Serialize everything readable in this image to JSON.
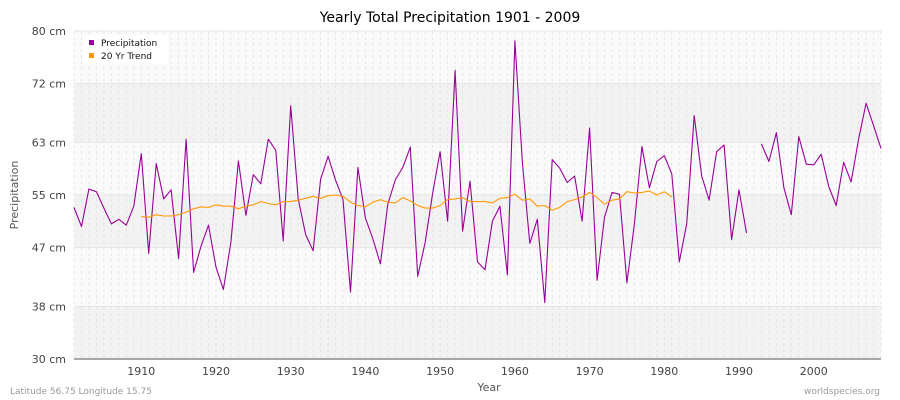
{
  "chart_data": {
    "type": "line",
    "title": "Yearly Total Precipitation 1901 - 2009",
    "xlabel": "Year",
    "ylabel": "Precipitation",
    "xlim": [
      1901,
      2009
    ],
    "ylim": [
      30,
      80
    ],
    "y_ticks": [
      "30 cm",
      "38 cm",
      "47 cm",
      "55 cm",
      "63 cm",
      "72 cm",
      "80 cm"
    ],
    "x_ticks": [
      "1910",
      "1920",
      "1930",
      "1940",
      "1950",
      "1960",
      "1970",
      "1980",
      "1990",
      "2000"
    ],
    "legend_position": "top-left",
    "grid": true,
    "series": [
      {
        "name": "Precipitation",
        "color": "#990099",
        "x": [
          1901,
          1902,
          1903,
          1904,
          1905,
          1906,
          1907,
          1908,
          1909,
          1910,
          1911,
          1912,
          1913,
          1914,
          1915,
          1916,
          1917,
          1918,
          1919,
          1920,
          1921,
          1922,
          1923,
          1924,
          1925,
          1926,
          1927,
          1928,
          1929,
          1930,
          1931,
          1932,
          1933,
          1934,
          1935,
          1936,
          1937,
          1938,
          1939,
          1940,
          1941,
          1942,
          1943,
          1944,
          1945,
          1946,
          1947,
          1948,
          1949,
          1950,
          1951,
          1952,
          1953,
          1954,
          1955,
          1956,
          1957,
          1958,
          1959,
          1960,
          1961,
          1962,
          1963,
          1964,
          1965,
          1966,
          1967,
          1968,
          1969,
          1970,
          1971,
          1972,
          1973,
          1974,
          1975,
          1976,
          1977,
          1978,
          1979,
          1980,
          1981,
          1982,
          1983,
          1984,
          1985,
          1986,
          1987,
          1988,
          1989,
          1990,
          1991,
          1992,
          1993,
          1994,
          1995,
          1996,
          1997,
          1998,
          1999,
          2000,
          2001,
          2002,
          2003,
          2004,
          2005,
          2006,
          2007,
          2008,
          2009
        ],
        "values": [
          53.1,
          50.2,
          55.9,
          55.5,
          53.0,
          50.6,
          51.3,
          50.4,
          53.3,
          61.3,
          46.1,
          59.8,
          54.4,
          55.8,
          45.3,
          63.5,
          43.2,
          47.2,
          50.4,
          44.0,
          40.6,
          47.8,
          60.2,
          51.9,
          58.1,
          56.7,
          63.5,
          61.8,
          48.0,
          68.6,
          54.4,
          49.0,
          46.5,
          57.4,
          60.9,
          57.3,
          54.3,
          40.2,
          59.2,
          51.5,
          48.3,
          44.5,
          53.6,
          57.3,
          59.2,
          62.3,
          42.6,
          47.8,
          55.3,
          61.6,
          51.0,
          74.0,
          49.5,
          57.1,
          44.8,
          43.6,
          51.0,
          53.3,
          42.8,
          78.5,
          60.1,
          47.6,
          51.3,
          38.6,
          60.4,
          59.1,
          56.9,
          57.9,
          51.0,
          65.2,
          42.0,
          51.6,
          55.4,
          55.1,
          41.6,
          50.6,
          62.4,
          56.1,
          60.1,
          61.0,
          58.2,
          44.8,
          50.6,
          67.1,
          57.9,
          54.2,
          61.6,
          62.6,
          48.2,
          55.8,
          49.2,
          null,
          62.8,
          60.1,
          64.5,
          56.1,
          52.0,
          63.9,
          59.7,
          59.6,
          61.2,
          56.3,
          53.4,
          60.0,
          57.0,
          63.5,
          69.0,
          65.6,
          62.1
        ]
      },
      {
        "name": "20 Yr Trend",
        "color": "#ff9900",
        "x": [
          1910,
          1911,
          1912,
          1913,
          1914,
          1915,
          1916,
          1917,
          1918,
          1919,
          1920,
          1921,
          1922,
          1923,
          1924,
          1925,
          1926,
          1927,
          1928,
          1929,
          1930,
          1931,
          1932,
          1933,
          1934,
          1935,
          1936,
          1937,
          1938,
          1939,
          1940,
          1941,
          1942,
          1943,
          1944,
          1945,
          1946,
          1947,
          1948,
          1949,
          1950,
          1951,
          1952,
          1953,
          1954,
          1955,
          1956,
          1957,
          1958,
          1959,
          1960,
          1961,
          1962,
          1963,
          1964,
          1965,
          1966,
          1967,
          1968,
          1969,
          1970,
          1971,
          1972,
          1973,
          1974,
          1975,
          1976,
          1977,
          1978,
          1979,
          1980,
          1981
        ],
        "values": [
          51.7,
          51.6,
          52.0,
          51.8,
          51.8,
          52.0,
          52.4,
          52.9,
          53.2,
          53.1,
          53.5,
          53.3,
          53.3,
          52.9,
          53.3,
          53.5,
          54.0,
          53.7,
          53.5,
          54.0,
          54.0,
          54.2,
          54.5,
          54.8,
          54.5,
          54.9,
          55.0,
          54.8,
          53.9,
          53.4,
          53.2,
          53.9,
          54.3,
          53.9,
          53.8,
          54.6,
          54.1,
          53.4,
          53.0,
          53.0,
          53.4,
          54.3,
          54.4,
          54.6,
          54.0,
          54.0,
          54.0,
          53.8,
          54.5,
          54.6,
          55.1,
          54.2,
          54.4,
          53.3,
          53.4,
          52.7,
          53.1,
          54.0,
          54.3,
          54.7,
          55.4,
          54.6,
          53.6,
          54.2,
          54.4,
          55.5,
          55.3,
          55.4,
          55.6,
          55.0,
          55.5,
          54.7
        ]
      }
    ]
  },
  "footer": {
    "left": "Latitude 56.75 Longitude 15.75",
    "right": "worldspecies.org"
  }
}
